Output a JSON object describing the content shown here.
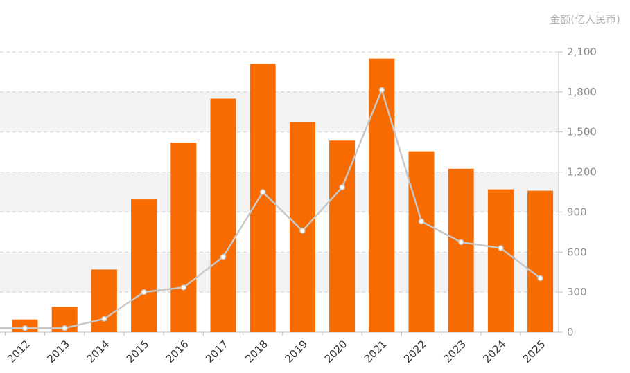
{
  "chart_data": {
    "type": "bar",
    "unit_label": "金额(亿人民币)",
    "categories": [
      "2012",
      "2013",
      "2014",
      "2015",
      "2016",
      "2017",
      "2018",
      "2019",
      "2020",
      "2021",
      "2022",
      "2023",
      "2024",
      "2025"
    ],
    "series": [
      {
        "type": "bar",
        "values": [
          95,
          190,
          470,
          995,
          1420,
          1750,
          2010,
          1575,
          1435,
          2050,
          1355,
          1225,
          1070,
          1060
        ]
      },
      {
        "type": "line",
        "values": [
          30,
          30,
          100,
          300,
          335,
          565,
          1050,
          760,
          1085,
          1815,
          830,
          675,
          630,
          405
        ]
      }
    ],
    "y_ticks": [
      "0",
      "300",
      "600",
      "900",
      "1,200",
      "1,500",
      "1,800",
      "2,100"
    ],
    "ylim": [
      0,
      2100
    ],
    "grid": true,
    "colors": {
      "bar": "#f76b00",
      "line": "#c8c8c8",
      "band": "#f3f3f3",
      "grid": "#cfcfcf"
    }
  }
}
